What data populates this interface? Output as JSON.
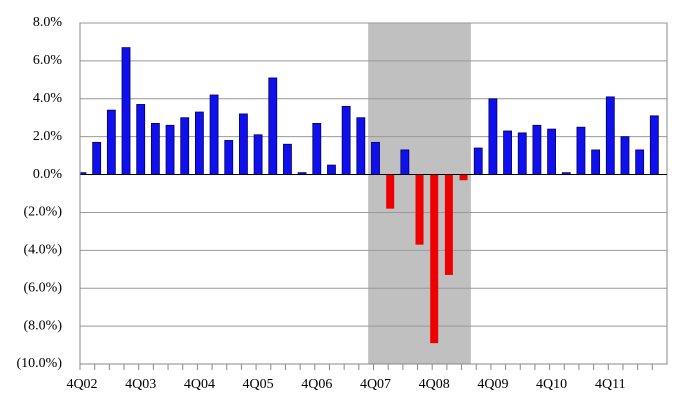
{
  "chart_data": {
    "type": "bar",
    "categories": [
      "4Q02",
      null,
      null,
      null,
      "4Q03",
      null,
      null,
      null,
      "4Q04",
      null,
      null,
      null,
      "4Q05",
      null,
      null,
      null,
      "4Q06",
      null,
      null,
      null,
      "4Q07",
      null,
      null,
      null,
      "4Q08",
      null,
      null,
      null,
      "4Q09",
      null,
      null,
      null,
      "4Q10",
      null,
      null,
      null,
      "4Q11",
      null,
      null,
      null
    ],
    "values": [
      0.1,
      1.7,
      3.4,
      6.7,
      3.7,
      2.7,
      2.6,
      3.0,
      3.3,
      4.2,
      1.8,
      3.2,
      2.1,
      5.1,
      1.6,
      0.1,
      2.7,
      0.5,
      3.6,
      3.0,
      1.7,
      -1.8,
      1.3,
      -3.7,
      -8.9,
      -5.3,
      -0.3,
      1.4,
      4.0,
      2.3,
      2.2,
      2.6,
      2.4,
      0.1,
      2.5,
      1.3,
      4.1,
      2.0,
      1.3,
      3.1
    ],
    "positive_color": "#1010ee",
    "negative_color": "#ee0000",
    "shaded_categories": [
      20,
      26
    ],
    "shade_color": "#c0c0c0",
    "ylim": [
      -10,
      8
    ],
    "yticks": [
      {
        "value": -10,
        "label": "(10.0%)"
      },
      {
        "value": -8,
        "label": "(8.0%)"
      },
      {
        "value": -6,
        "label": "(6.0%)"
      },
      {
        "value": -4,
        "label": "(4.0%)"
      },
      {
        "value": -2,
        "label": "(2.0%)"
      },
      {
        "value": 0,
        "label": "0.0%"
      },
      {
        "value": 2,
        "label": "2.0%"
      },
      {
        "value": 4,
        "label": "4.0%"
      },
      {
        "value": 6,
        "label": "6.0%"
      },
      {
        "value": 8,
        "label": "8.0%"
      }
    ],
    "grid": true
  }
}
